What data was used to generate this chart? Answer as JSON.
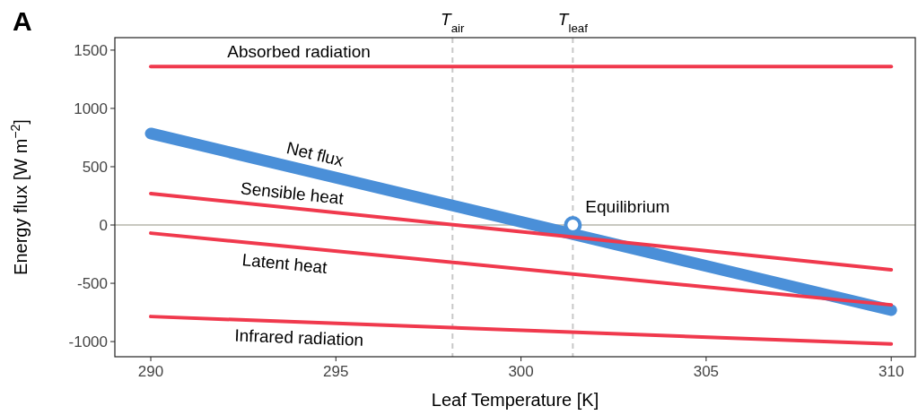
{
  "chart_data": {
    "type": "line",
    "xlabel": "Leaf Temperature [K]",
    "ylabel": "Energy flux [W m$^{−2}$]",
    "annotations": [
      "A",
      {
        "text": "Equilibrium",
        "x": 301.4,
        "y": 0
      }
    ],
    "xlim": [
      289.03,
      310.65
    ],
    "ylim": [
      -1130,
      1607
    ],
    "xticks": [
      290,
      295,
      300,
      305,
      310
    ],
    "yticks": [
      -1000,
      -500,
      0,
      500,
      1000,
      1500
    ],
    "marker": "none",
    "line_style": "solid",
    "ref_lines": [
      {
        "axis": "x",
        "value": 298.15,
        "label": "T$_{air}$",
        "color": "#c8c8c8",
        "line_style": "dashed"
      },
      {
        "axis": "x",
        "value": 301.4,
        "label": "T$_{leaf}$",
        "color": "#c8c8c8",
        "line_style": "dashed"
      },
      {
        "axis": "y",
        "value": 0,
        "color": "#c8c8c0",
        "line_style": "solid"
      }
    ],
    "series": [
      {
        "name": "Absorbed radiation",
        "color": "#f0394d",
        "x": [
          290,
          310
        ],
        "values": [
          1360,
          1360
        ]
      },
      {
        "name": "Net flux",
        "color": "#4a8fd8",
        "x": [
          290,
          310
        ],
        "values": [
          785,
          -730
        ]
      },
      {
        "name": "Sensible heat",
        "color": "#f0394d",
        "x": [
          290,
          310
        ],
        "values": [
          270,
          -385
        ]
      },
      {
        "name": "Latent heat",
        "color": "#f0394d",
        "x": [
          290,
          310
        ],
        "values": [
          -70,
          -685
        ]
      },
      {
        "name": "Infrared radiation",
        "color": "#f0394d",
        "x": [
          290,
          310
        ],
        "values": [
          -785,
          -1020
        ]
      },
      {
        "type": "scatter",
        "color": "#4a8fd8",
        "x": [
          301.4
        ],
        "values": [
          0
        ],
        "marker": "circle"
      }
    ]
  }
}
